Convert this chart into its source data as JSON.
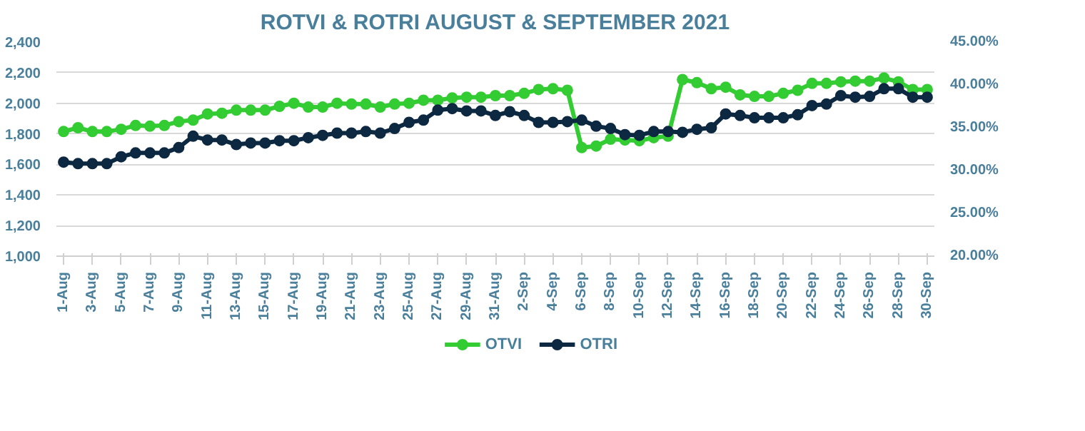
{
  "chart_data": {
    "type": "line",
    "title": "ROTVI & ROTRI AUGUST & SEPTEMBER 2021",
    "categories": [
      "1-Aug",
      null,
      "3-Aug",
      null,
      "5-Aug",
      null,
      "7-Aug",
      null,
      "9-Aug",
      null,
      "11-Aug",
      null,
      "13-Aug",
      null,
      "15-Aug",
      null,
      "17-Aug",
      null,
      "19-Aug",
      null,
      "21-Aug",
      null,
      "23-Aug",
      null,
      "25-Aug",
      null,
      "27-Aug",
      null,
      "29-Aug",
      null,
      "31-Aug",
      null,
      "2-Sep",
      null,
      "4-Sep",
      null,
      "6-Sep",
      null,
      "8-Sep",
      null,
      "10-Sep",
      null,
      "12-Sep",
      null,
      "14-Sep",
      null,
      "16-Sep",
      null,
      "18-Sep",
      null,
      "20-Sep",
      null,
      "22-Sep",
      null,
      "24-Sep",
      null,
      "26-Sep",
      null,
      "28-Sep",
      null,
      "30-Sep"
    ],
    "series": [
      {
        "name": "OTVI",
        "color": "#33cc33",
        "values": [
          1815,
          1840,
          1815,
          1815,
          1830,
          1855,
          1850,
          1855,
          1880,
          1890,
          1930,
          1935,
          1955,
          1955,
          1955,
          1980,
          2000,
          1975,
          1975,
          2000,
          1995,
          1995,
          1975,
          1995,
          2000,
          2020,
          2020,
          2035,
          2040,
          2040,
          2050,
          2050,
          2065,
          2090,
          2095,
          2085,
          1710,
          1720,
          1765,
          1760,
          1755,
          1775,
          1785,
          2155,
          2135,
          2095,
          2105,
          2055,
          2045,
          2045,
          2065,
          2085,
          2130,
          2130,
          2140,
          2145,
          2145,
          2165,
          2140,
          2090,
          2090
        ]
      },
      {
        "name": "OTRI",
        "color": "#0d2841",
        "values": [
          1615,
          1605,
          1605,
          1605,
          1650,
          1675,
          1675,
          1675,
          1710,
          1785,
          1760,
          1760,
          1730,
          1740,
          1740,
          1755,
          1755,
          1775,
          1790,
          1805,
          1805,
          1815,
          1805,
          1835,
          1875,
          1890,
          1955,
          1965,
          1950,
          1950,
          1920,
          1945,
          1920,
          1875,
          1875,
          1880,
          1890,
          1850,
          1835,
          1795,
          1790,
          1815,
          1815,
          1810,
          1830,
          1840,
          1930,
          1920,
          1905,
          1905,
          1905,
          1925,
          1985,
          1995,
          2050,
          2040,
          2045,
          2095,
          2095,
          2040,
          2040
        ]
      }
    ],
    "ylim": [
      1000,
      2400
    ],
    "yticks": [
      {
        "value": 1000,
        "label": "1,000"
      },
      {
        "value": 1200,
        "label": "1,200"
      },
      {
        "value": 1400,
        "label": "1,400"
      },
      {
        "value": 1600,
        "label": "1,600"
      },
      {
        "value": 1800,
        "label": "1,800"
      },
      {
        "value": 2000,
        "label": "2,000"
      },
      {
        "value": 2200,
        "label": "2,200"
      },
      {
        "value": 2400,
        "label": "2,400"
      }
    ],
    "y2lim": [
      0.2,
      0.45
    ],
    "y2ticks": [
      {
        "value": 0.2,
        "label": "20.00%"
      },
      {
        "value": 0.25,
        "label": "25.00%"
      },
      {
        "value": 0.3,
        "label": "30.00%"
      },
      {
        "value": 0.35,
        "label": "35.00%"
      },
      {
        "value": 0.4,
        "label": "40.00%"
      },
      {
        "value": 0.45,
        "label": "45.00%"
      }
    ],
    "grid": "y",
    "legend": "bottom",
    "marker": "circle",
    "line_style": "solid"
  }
}
